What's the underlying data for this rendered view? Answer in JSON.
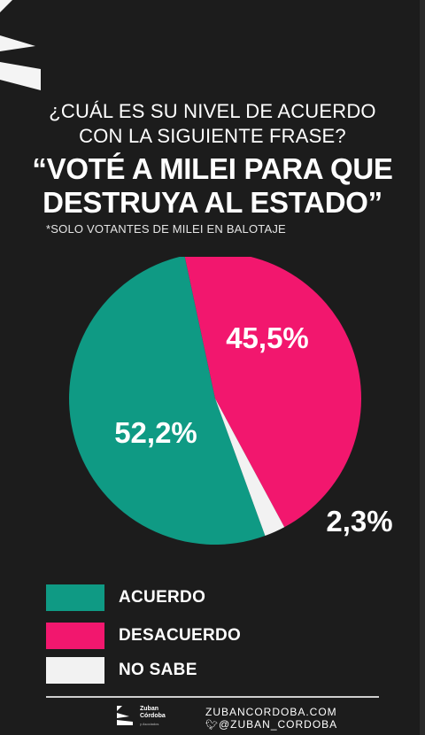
{
  "header": {
    "question_line1": "¿CUÁL ES SU NIVEL DE ACUERDO",
    "question_line2": "CON LA SIGUIENTE FRASE?",
    "headline_line1": "“VOTÉ A MILEI PARA QUE",
    "headline_line2": "DESTRUYA AL ESTADO”",
    "note": "*SOLO VOTANTES DE MILEI EN BALOTAJE"
  },
  "chart_data": {
    "type": "pie",
    "slices": [
      {
        "label": "ACUERDO",
        "value": 52.2,
        "display": "52,2%",
        "color": "#0f9a84"
      },
      {
        "label": "DESACUERDO",
        "value": 45.5,
        "display": "45,5%",
        "color": "#f2176e"
      },
      {
        "label": "NO SABE",
        "value": 2.3,
        "display": "2,3%",
        "color": "#f2f2f2"
      }
    ]
  },
  "legend": {
    "items": [
      {
        "label": "ACUERDO",
        "color": "#0f9a84"
      },
      {
        "label": "DESACUERDO",
        "color": "#f2176e"
      },
      {
        "label": "NO SABE",
        "color": "#f2f2f2"
      }
    ]
  },
  "footer": {
    "brand_line1": "Zuban",
    "brand_line2": "Córdoba",
    "brand_line3": "y Asociados",
    "website": "ZUBANCORDOBA.COM",
    "handle": "@ZUBAN_CORDOBA"
  }
}
